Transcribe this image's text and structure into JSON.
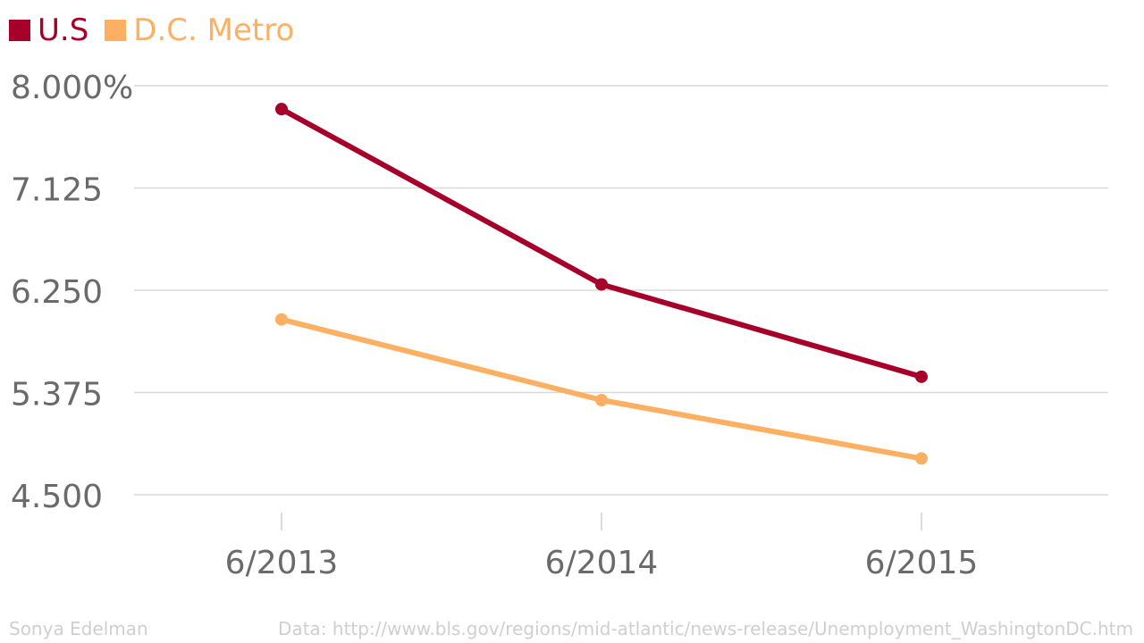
{
  "chart_data": {
    "type": "line",
    "categories": [
      "6/2013",
      "6/2014",
      "6/2015"
    ],
    "series": [
      {
        "name": "U.S",
        "color": "#a6002a",
        "values": [
          7.8,
          6.3,
          5.51
        ]
      },
      {
        "name": "D.C. Metro",
        "color": "#fdb062",
        "values": [
          6.0,
          5.31,
          4.81
        ]
      }
    ],
    "ylim": [
      4.5,
      8.0
    ],
    "yticks": [
      {
        "value": 8.0,
        "label": "8.000%"
      },
      {
        "value": 7.125,
        "label": "7.125"
      },
      {
        "value": 6.25,
        "label": "6.250"
      },
      {
        "value": 5.375,
        "label": "5.375"
      },
      {
        "value": 4.5,
        "label": "4.500"
      }
    ],
    "grid": true,
    "legend_position": "top-left"
  },
  "footer": {
    "credit": "Sonya Edelman",
    "source": "Data: http://www.bls.gov/regions/mid-atlantic/news-release/Unemployment_WashingtonDC.htm"
  }
}
